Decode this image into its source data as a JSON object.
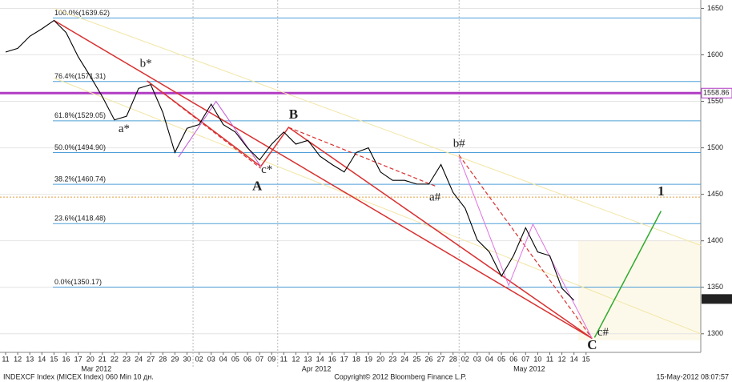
{
  "chart_data": {
    "type": "line",
    "categories": [
      "11",
      "12",
      "13",
      "14",
      "15",
      "16",
      "17",
      "20",
      "21",
      "22",
      "23",
      "24",
      "27",
      "28",
      "29",
      "30",
      "02",
      "03",
      "04",
      "05",
      "06",
      "07",
      "09",
      "11",
      "12",
      "13",
      "14",
      "16",
      "17",
      "18",
      "19",
      "20",
      "23",
      "24",
      "25",
      "26",
      "27",
      "28",
      "02",
      "03",
      "04",
      "05",
      "06",
      "07",
      "10",
      "11",
      "12",
      "14",
      "15"
    ],
    "series": [
      {
        "color": "#000000",
        "values": [
          1603,
          1607,
          1620,
          1628,
          1637,
          1624,
          1598,
          1577,
          1555,
          1530,
          1534,
          1564,
          1568,
          1538,
          1495,
          1521,
          1525,
          1547,
          1525,
          1517,
          1500,
          1487,
          1504,
          1517,
          1504,
          1508,
          1491,
          1482,
          1474,
          1495,
          1500,
          1474,
          1465,
          1465,
          1461,
          1461,
          1482,
          1452,
          1435,
          1401,
          1388,
          1362,
          1384,
          1414,
          1388,
          1384,
          1349,
          1336,
          null
        ]
      }
    ],
    "ylim": [
      1280,
      1659
    ],
    "yticks": [
      1300,
      1350,
      1400,
      1450,
      1500,
      1550,
      1600,
      1650
    ],
    "grid": true,
    "fib_levels": [
      {
        "value": 1639.62,
        "label": "100.0%(1639.62)"
      },
      {
        "value": 1571.31,
        "label": "76.4%(1571.31)"
      },
      {
        "value": 1529.05,
        "label": "61.8%(1529.05)"
      },
      {
        "value": 1494.9,
        "label": "50.0%(1494.90)"
      },
      {
        "value": 1460.74,
        "label": "38.2%(1460.74)"
      },
      {
        "value": 1418.48,
        "label": "23.6%(1418.48)"
      },
      {
        "value": 1350.17,
        "label": "0.0%(1350.17)"
      }
    ],
    "fib_color": "#4f9fd8",
    "marker_line": {
      "value": 1558.86,
      "color": "#b13cc4"
    },
    "dotted_line": {
      "value": 1447,
      "color": "#e0a040"
    },
    "last_price": 1337.42,
    "x_groups": [
      {
        "label": "Mar 2012",
        "at": 7.5
      },
      {
        "label": "Apr 2012",
        "at": 25.7
      },
      {
        "label": "May 2012",
        "at": 43.3
      }
    ],
    "separators": [
      15.5,
      22.5,
      37.5
    ],
    "lines": [
      {
        "color": "#f2e6a6",
        "width": 1,
        "dash": false,
        "x": [
          4,
          57.5
        ],
        "y": [
          1650,
          1395
        ]
      },
      {
        "color": "#f2e6a6",
        "width": 1,
        "dash": false,
        "x": [
          4,
          57.5
        ],
        "y": [
          1575,
          1300
        ]
      },
      {
        "color": "#d93030",
        "width": 1.5,
        "dash": false,
        "x": [
          4,
          48.5
        ],
        "y": [
          1637,
          1295
        ]
      },
      {
        "color": "#d93030",
        "width": 1.5,
        "dash": false,
        "x": [
          11.7,
          21.1
        ],
        "y": [
          1572,
          1480
        ]
      },
      {
        "color": "#d93030",
        "width": 1.5,
        "dash": false,
        "x": [
          21.1,
          23.4,
          48.5
        ],
        "y": [
          1480,
          1522,
          1295
        ]
      },
      {
        "color": "#d93030",
        "width": 1.2,
        "dash": true,
        "x": [
          11.7,
          21.1
        ],
        "y": [
          1572,
          1478
        ]
      },
      {
        "color": "#d93030",
        "width": 1.2,
        "dash": true,
        "x": [
          23.4,
          35.7
        ],
        "y": [
          1522,
          1458
        ]
      },
      {
        "color": "#d93030",
        "width": 1.2,
        "dash": true,
        "x": [
          37.5,
          48.5
        ],
        "y": [
          1492,
          1295
        ]
      },
      {
        "color": "#c455d8",
        "width": 1,
        "dash": false,
        "x": [
          14.3,
          17.4,
          21.1
        ],
        "y": [
          1490,
          1550,
          1480
        ]
      },
      {
        "color": "#e070e0",
        "width": 1,
        "dash": false,
        "x": [
          37.5,
          41.6,
          43.6,
          48.5
        ],
        "y": [
          1490,
          1352,
          1418,
          1295
        ]
      },
      {
        "color": "#2faa2f",
        "width": 1.5,
        "dash": false,
        "x": [
          48.7,
          54.2
        ],
        "y": [
          1296,
          1432
        ]
      }
    ],
    "annotations": [
      {
        "text": "b*",
        "x": 11.6,
        "y": 1590,
        "color": "#cc2222",
        "bold": false
      },
      {
        "text": "a*",
        "x": 9.8,
        "y": 1520,
        "color": "#cc2222",
        "bold": false
      },
      {
        "text": "c*",
        "x": 21.6,
        "y": 1476,
        "color": "#cc2222",
        "bold": false
      },
      {
        "text": "A",
        "x": 20.8,
        "y": 1458,
        "color": "#cc1111",
        "bold": true
      },
      {
        "text": "B",
        "x": 23.8,
        "y": 1535,
        "color": "#cc1111",
        "bold": true
      },
      {
        "text": "b#",
        "x": 37.5,
        "y": 1504,
        "color": "#cc2222",
        "bold": false
      },
      {
        "text": "a#",
        "x": 35.5,
        "y": 1446,
        "color": "#cc2222",
        "bold": false
      },
      {
        "text": "c#",
        "x": 49.4,
        "y": 1301,
        "color": "#cc2222",
        "bold": false
      },
      {
        "text": "C",
        "x": 48.5,
        "y": 1287,
        "color": "#cc1111",
        "bold": true
      },
      {
        "text": "1",
        "x": 54.2,
        "y": 1452,
        "color": "#2faa2f",
        "bold": true
      }
    ],
    "footer_left": "INDEXCF Index (MICEX Index) 060 Min 10 дн.",
    "footer_center": "Copyright© 2012 Bloomberg Finance L.P.",
    "footer_right": "15-May-2012 08:07:57"
  }
}
